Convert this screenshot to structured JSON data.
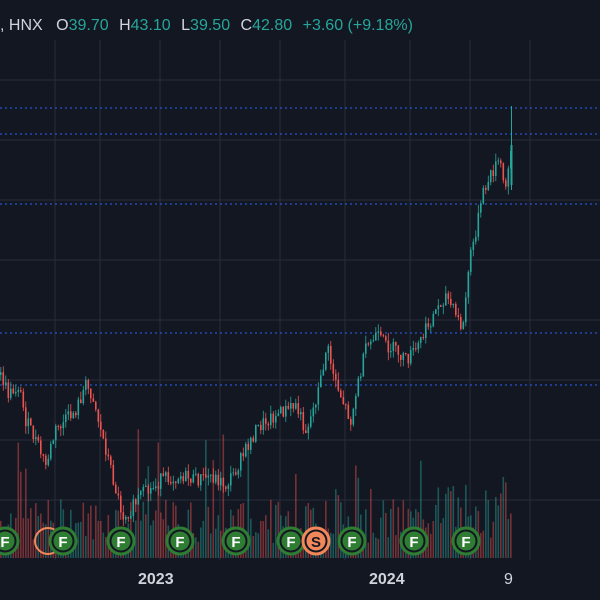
{
  "legend": {
    "exchange": ", HNX",
    "open_label": "O",
    "open": "39.70",
    "high_label": "H",
    "high": "43.10",
    "low_label": "L",
    "low": "39.50",
    "close_label": "C",
    "close": "42.80",
    "change": "+3.60 (+9.18%)"
  },
  "time_axis": {
    "labels": [
      "2023",
      "2024",
      "9"
    ]
  },
  "event_markers": {
    "dividend_letter": "F",
    "split_letter": "S"
  },
  "colors": {
    "background": "#131722",
    "grid": "#2a2e39",
    "up": "#26a69a",
    "down": "#ef5350",
    "price_line": "#2962ff",
    "dividend_marker": "#2e7d32",
    "split_marker": "#f2875a",
    "text": "#d1d4dc"
  }
}
